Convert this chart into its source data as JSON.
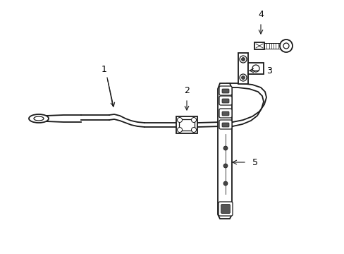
{
  "background_color": "#ffffff",
  "line_color": "#1a1a1a",
  "figure_width": 4.89,
  "figure_height": 3.6,
  "dpi": 100,
  "label_fontsize": 9
}
